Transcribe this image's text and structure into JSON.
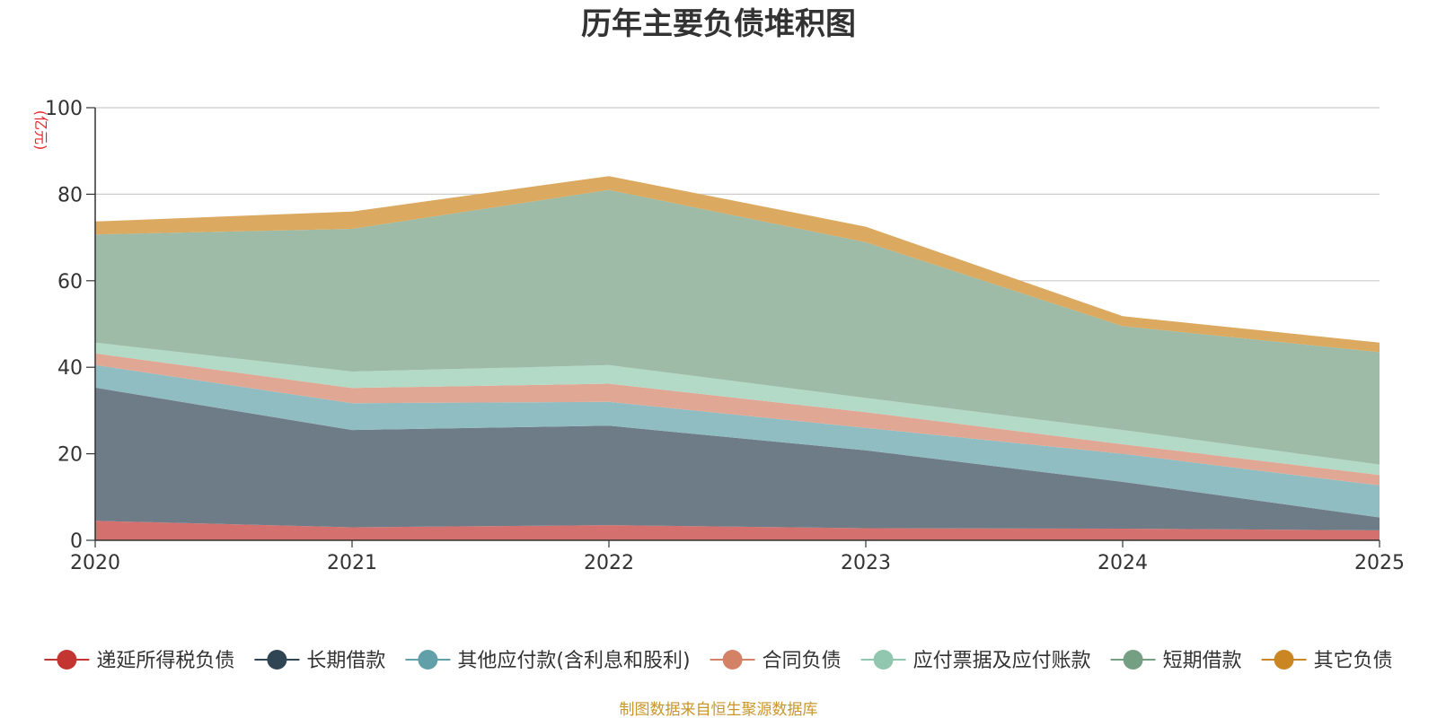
{
  "chart_data": {
    "type": "area",
    "title": "历年主要负债堆积图",
    "unit_label": "(亿元)",
    "x": [
      "2020",
      "2021",
      "2022",
      "2023",
      "2024",
      "2025"
    ],
    "ylim": [
      0,
      100
    ],
    "yticks": [
      "0",
      "20",
      "40",
      "60",
      "80",
      "100"
    ],
    "grid": true,
    "legend_position": "bottom",
    "series": [
      {
        "name": "递延所得税负债",
        "color": "#c23531",
        "fill": "#d4716f",
        "values": [
          4.5,
          3.0,
          3.5,
          2.8,
          2.7,
          2.3
        ]
      },
      {
        "name": "长期借款",
        "color": "#2f4554",
        "fill": "#6e7c87",
        "values": [
          30.8,
          22.5,
          23.0,
          18.0,
          10.8,
          3.0
        ]
      },
      {
        "name": "其他应付款(含利息和股利)",
        "color": "#61a0a8",
        "fill": "#90bdc2",
        "values": [
          5.2,
          6.2,
          5.5,
          5.2,
          6.5,
          7.4
        ]
      },
      {
        "name": "合同负债",
        "color": "#d48265",
        "fill": "#e0a794",
        "values": [
          2.7,
          3.5,
          4.2,
          3.6,
          2.2,
          2.4
        ]
      },
      {
        "name": "应付票据及应付账款",
        "color": "#91c7ae",
        "fill": "#b3d9c7",
        "values": [
          2.5,
          3.8,
          4.3,
          3.3,
          3.3,
          2.4
        ]
      },
      {
        "name": "短期借款",
        "color": "#749f83",
        "fill": "#9dbba6",
        "values": [
          25.0,
          33.0,
          40.5,
          36.0,
          24.0,
          26.0
        ]
      },
      {
        "name": "其它负债",
        "color": "#ca8622",
        "fill": "#dba95f",
        "values": [
          3.0,
          4.0,
          3.2,
          3.6,
          2.3,
          2.2
        ]
      }
    ],
    "source_note": "制图数据来自恒生聚源数据库"
  }
}
